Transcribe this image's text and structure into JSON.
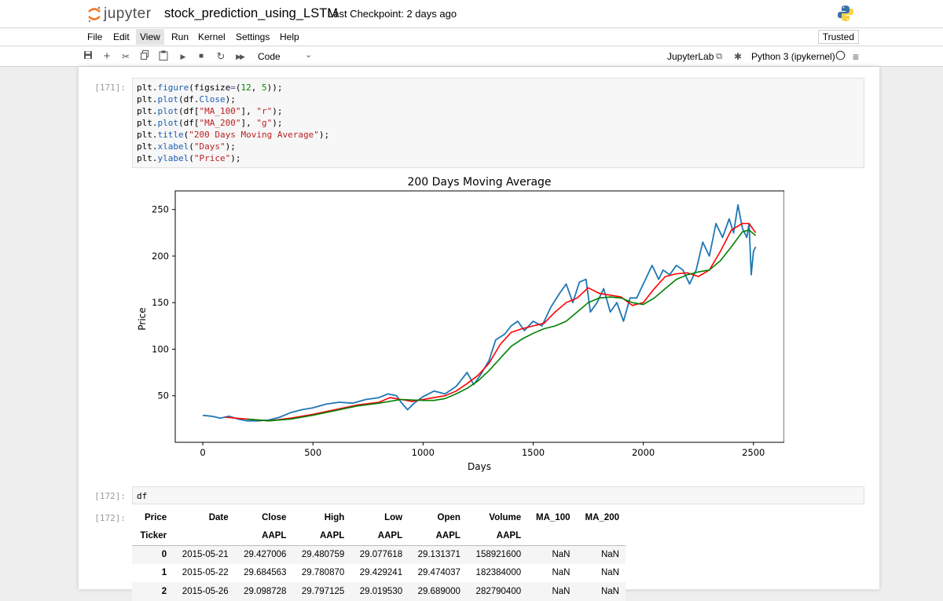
{
  "header": {
    "logo_text": "jupyter",
    "notebook_title": "stock_prediction_using_LSTM",
    "checkpoint": "Last Checkpoint: 2 days ago"
  },
  "menu": {
    "items": [
      "File",
      "Edit",
      "View",
      "Run",
      "Kernel",
      "Settings",
      "Help"
    ],
    "trusted": "Trusted"
  },
  "toolbar": {
    "cell_type": "Code",
    "lab_link": "JupyterLab",
    "kernel": "Python 3 (ipykernel)"
  },
  "cells": {
    "cell1_prompt": "[171]:",
    "cell2_prompt": "[172]:",
    "cell2_code": "df",
    "out2_prompt": "[172]:"
  },
  "table": {
    "header1": [
      "Price",
      "Date",
      "Close",
      "High",
      "Low",
      "Open",
      "Volume",
      "MA_100",
      "MA_200"
    ],
    "header2": [
      "Ticker",
      "",
      "AAPL",
      "AAPL",
      "AAPL",
      "AAPL",
      "AAPL",
      "",
      ""
    ],
    "rows": [
      [
        "0",
        "2015-05-21",
        "29.427006",
        "29.480759",
        "29.077618",
        "29.131371",
        "158921600",
        "NaN",
        "NaN"
      ],
      [
        "1",
        "2015-05-22",
        "29.684563",
        "29.780870",
        "29.429241",
        "29.474037",
        "182384000",
        "NaN",
        "NaN"
      ],
      [
        "2",
        "2015-05-26",
        "29.098728",
        "29.797125",
        "29.019530",
        "29.689000",
        "282790400",
        "NaN",
        "NaN"
      ]
    ]
  },
  "chart_data": {
    "type": "line",
    "title": "200 Days Moving Average",
    "xlabel": "Days",
    "ylabel": "Price",
    "xlim": [
      -125,
      2640
    ],
    "ylim": [
      0,
      270
    ],
    "xticks": [
      0,
      500,
      1000,
      1500,
      2000,
      2500
    ],
    "yticks": [
      50,
      100,
      150,
      200,
      250
    ],
    "series": [
      {
        "name": "Close",
        "color": "#1f77b4",
        "x": [
          0,
          40,
          80,
          120,
          160,
          200,
          250,
          300,
          350,
          400,
          450,
          500,
          560,
          620,
          680,
          740,
          800,
          840,
          880,
          900,
          930,
          960,
          1000,
          1050,
          1100,
          1150,
          1200,
          1230,
          1260,
          1300,
          1330,
          1370,
          1400,
          1430,
          1460,
          1500,
          1540,
          1580,
          1620,
          1650,
          1680,
          1710,
          1740,
          1760,
          1790,
          1820,
          1850,
          1880,
          1910,
          1940,
          1970,
          2000,
          2020,
          2040,
          2070,
          2090,
          2120,
          2150,
          2180,
          2210,
          2240,
          2270,
          2300,
          2330,
          2360,
          2390,
          2410,
          2430,
          2450,
          2470,
          2480,
          2490,
          2500,
          2510
        ],
        "values": [
          29,
          28,
          26,
          28,
          25,
          23,
          23,
          24,
          27,
          32,
          35,
          37,
          41,
          43,
          42,
          46,
          48,
          52,
          50,
          43,
          35,
          42,
          49,
          55,
          52,
          60,
          75,
          62,
          72,
          88,
          110,
          116,
          125,
          130,
          120,
          130,
          125,
          145,
          160,
          170,
          150,
          172,
          175,
          140,
          150,
          165,
          140,
          150,
          130,
          155,
          155,
          170,
          180,
          190,
          175,
          185,
          180,
          190,
          185,
          170,
          185,
          215,
          200,
          235,
          220,
          240,
          225,
          255,
          230,
          220,
          235,
          180,
          205,
          210
        ]
      },
      {
        "name": "MA_100",
        "color": "#ff0000",
        "x": [
          100,
          200,
          300,
          400,
          500,
          600,
          700,
          800,
          850,
          900,
          950,
          1000,
          1050,
          1100,
          1150,
          1200,
          1250,
          1300,
          1350,
          1400,
          1450,
          1500,
          1550,
          1600,
          1650,
          1700,
          1750,
          1800,
          1850,
          1900,
          1950,
          2000,
          2050,
          2100,
          2150,
          2200,
          2250,
          2300,
          2350,
          2400,
          2450,
          2480,
          2510
        ],
        "values": [
          27,
          25,
          23,
          26,
          30,
          35,
          40,
          43,
          48,
          46,
          44,
          46,
          48,
          50,
          55,
          63,
          72,
          85,
          105,
          118,
          122,
          125,
          128,
          140,
          150,
          155,
          166,
          160,
          158,
          156,
          147,
          150,
          165,
          178,
          181,
          182,
          178,
          185,
          205,
          228,
          235,
          235,
          225
        ]
      },
      {
        "name": "MA_200",
        "color": "#008000",
        "x": [
          200,
          300,
          400,
          500,
          600,
          700,
          800,
          900,
          1000,
          1050,
          1100,
          1150,
          1200,
          1250,
          1300,
          1350,
          1400,
          1450,
          1500,
          1550,
          1600,
          1650,
          1700,
          1750,
          1800,
          1850,
          1900,
          1950,
          2000,
          2050,
          2100,
          2150,
          2200,
          2250,
          2300,
          2350,
          2400,
          2450,
          2480,
          2510
        ],
        "values": [
          25,
          23,
          25,
          29,
          34,
          39,
          42,
          46,
          45,
          45,
          47,
          52,
          58,
          66,
          77,
          90,
          103,
          111,
          117,
          122,
          125,
          130,
          140,
          150,
          155,
          156,
          155,
          150,
          148,
          155,
          165,
          175,
          180,
          183,
          185,
          195,
          210,
          226,
          228,
          222
        ]
      }
    ]
  }
}
